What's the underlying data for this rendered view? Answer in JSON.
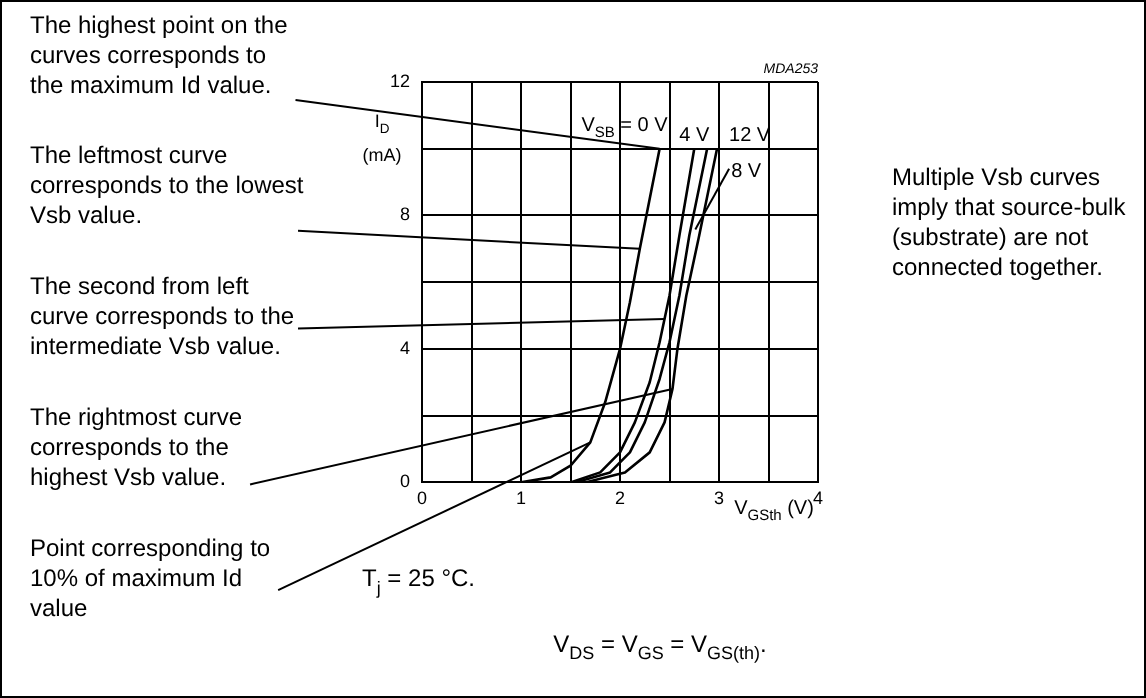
{
  "chart_data": {
    "type": "line",
    "xlabel": "V$_{GSth}$ (V)",
    "ylabel": "I$_{D}$ (mA)",
    "xlim": [
      0,
      4
    ],
    "xticks": [
      0,
      {
        "value": 0.5,
        "label": null
      },
      1,
      {
        "value": 1.5,
        "label": null
      },
      2,
      {
        "value": 2.5,
        "label": null
      },
      3,
      {
        "value": 3.5,
        "label": null
      },
      4
    ],
    "ylim": [
      0,
      12
    ],
    "yticks": [
      0,
      {
        "value": 2,
        "label": null
      },
      4,
      {
        "value": 6,
        "label": null
      },
      8,
      {
        "value": 10,
        "label": null
      },
      12
    ],
    "grid": true,
    "legend": false,
    "marker": "none",
    "line_style": "solid",
    "series": [
      {
        "name": "V$_{SB}$ = 0 V",
        "color": "#000000",
        "x": [
          1.0,
          1.3,
          1.5,
          1.7,
          1.85,
          2.0,
          2.1,
          2.2,
          2.3,
          2.4
        ],
        "values": [
          0,
          0.15,
          0.5,
          1.2,
          2.4,
          4.0,
          5.4,
          7.0,
          8.5,
          10
        ]
      },
      {
        "name": "4 V",
        "color": "#000000",
        "x": [
          1.5,
          1.8,
          2.0,
          2.15,
          2.3,
          2.4,
          2.5,
          2.6,
          2.75
        ],
        "values": [
          0,
          0.3,
          0.9,
          1.8,
          3.0,
          4.2,
          5.6,
          7.4,
          10
        ]
      },
      {
        "name": "8 V",
        "color": "#000000",
        "x": [
          1.55,
          1.9,
          2.1,
          2.25,
          2.4,
          2.5,
          2.6,
          2.7,
          2.88
        ],
        "values": [
          0,
          0.3,
          0.9,
          1.8,
          3.1,
          4.2,
          5.6,
          7.4,
          10
        ]
      },
      {
        "name": "12 V",
        "color": "#000000",
        "x": [
          1.65,
          2.05,
          2.3,
          2.45,
          2.53,
          2.58,
          2.67,
          2.8,
          2.98
        ],
        "values": [
          0,
          0.3,
          0.9,
          1.8,
          2.8,
          4.0,
          5.6,
          7.4,
          10
        ]
      }
    ],
    "annotations": [
      {
        "text": "The highest point on the curves corresponds to the maximum Id value.",
        "x": 2.4,
        "y": 10
      },
      {
        "text": "The leftmost curve corresponds to the lowest Vsb value.",
        "x": 2.2,
        "y": 7.0
      },
      {
        "text": "The second from left curve corresponds to the intermediate Vsb value.",
        "x": 2.45,
        "y": 4.9
      },
      {
        "text": "The rightmost curve corresponds to the highest Vsb value.",
        "x": 2.53,
        "y": 2.8
      },
      {
        "text": "Point corresponding to 10% of maximum Id value",
        "x": 1.7,
        "y": 1.2
      },
      "MDA253",
      "T$_{j}$ = 25 °C.",
      "V$_{DS}$ = V$_{GS}$ = V$_{GS(th)}$.",
      "Multiple Vsb curves imply that source-bulk (substrate) are not connected together."
    ]
  }
}
